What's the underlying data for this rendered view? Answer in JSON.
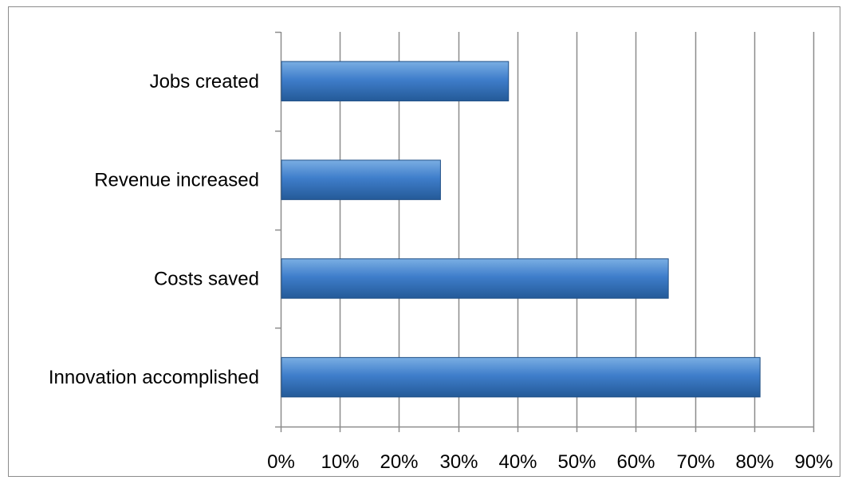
{
  "chart_data": {
    "type": "bar",
    "orientation": "horizontal",
    "title": "",
    "xlabel": "",
    "ylabel": "",
    "categories": [
      "Jobs created",
      "Revenue increased",
      "Costs saved",
      "Innovation accomplished"
    ],
    "values": [
      0.385,
      0.27,
      0.655,
      0.81
    ],
    "xlim": [
      0,
      0.9
    ],
    "x_ticks": [
      0,
      0.1,
      0.2,
      0.3,
      0.4,
      0.5,
      0.6,
      0.7,
      0.8,
      0.9
    ],
    "x_tick_labels": [
      "0%",
      "10%",
      "20%",
      "30%",
      "40%",
      "50%",
      "60%",
      "70%",
      "80%",
      "90%"
    ],
    "grid": "vertical",
    "legend": "none",
    "colors": {
      "bar_fill_top": "#7aaee3",
      "bar_fill_mid": "#3f7ecb",
      "bar_fill_bottom": "#245a98",
      "bar_edge": "#1f4f86",
      "gridline": "#8c8c8c",
      "axis": "#8c8c8c"
    }
  }
}
